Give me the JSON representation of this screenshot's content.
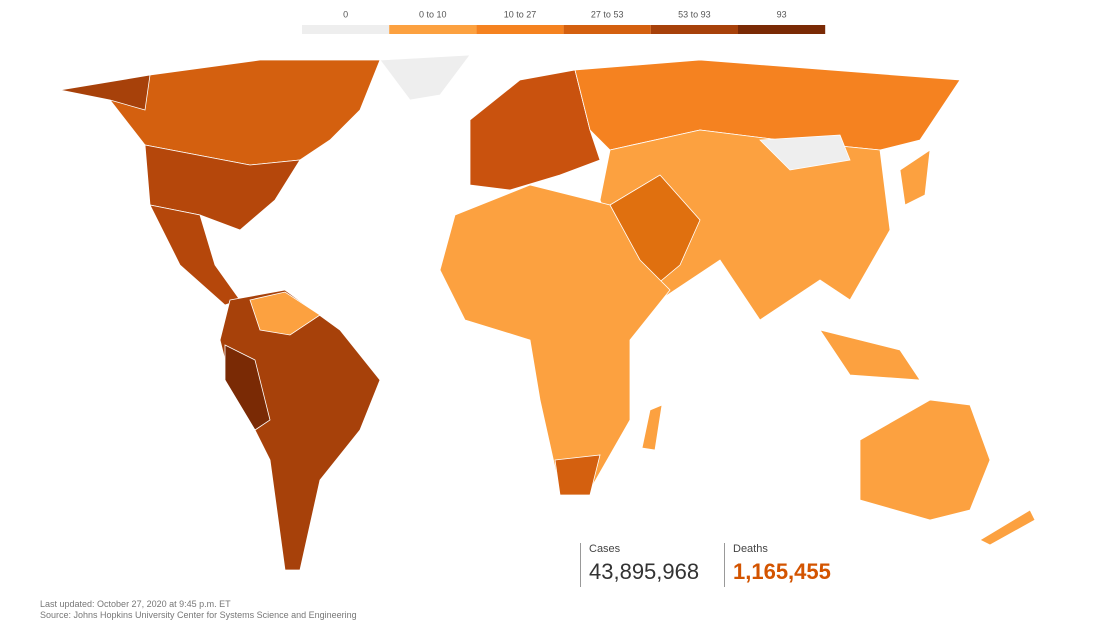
{
  "legend": [
    {
      "label": "0",
      "color": "#eeeeee"
    },
    {
      "label": "0 to 10",
      "color": "#fca140"
    },
    {
      "label": "10 to 27",
      "color": "#f58220"
    },
    {
      "label": "27 to 53",
      "color": "#d4600f"
    },
    {
      "label": "53 to 93",
      "color": "#a7410a"
    },
    {
      "label": "93",
      "color": "#7a2a05"
    }
  ],
  "stats": [
    {
      "label": "Cases",
      "value": "43,895,968"
    },
    {
      "label": "Deaths",
      "value": "1,165,455"
    }
  ],
  "footer": {
    "updated": "Last updated: October 27, 2020 at 9:45 p.m. ET",
    "source": "Source: Johns Hopkins University Center for Systems Science and Engineering"
  }
}
